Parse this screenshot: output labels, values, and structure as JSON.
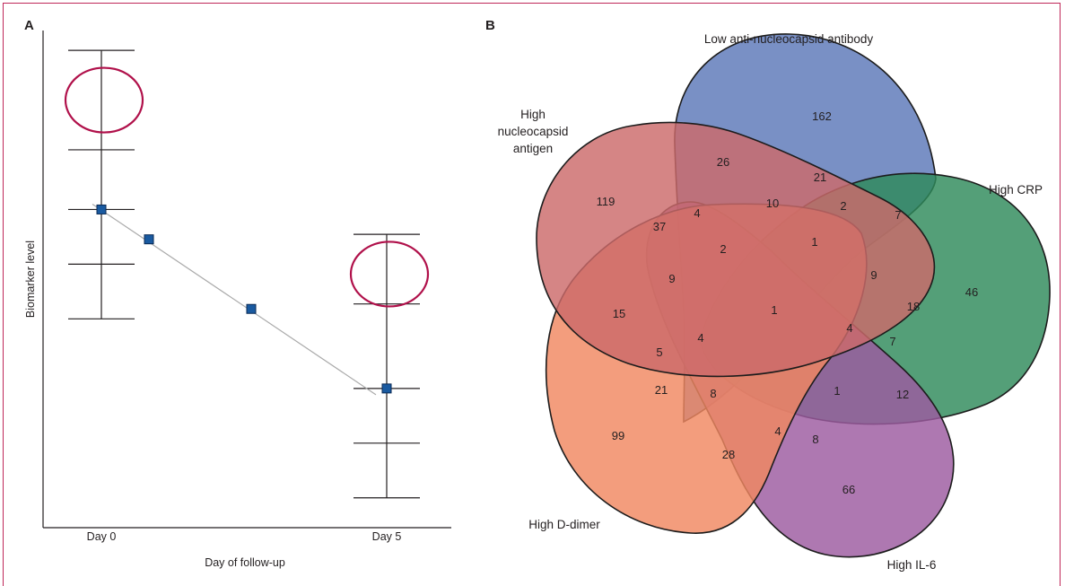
{
  "panels": {
    "a_letter": "A",
    "b_letter": "B"
  },
  "chart_data": [
    {
      "panel": "A",
      "type": "line",
      "xlabel": "Day of follow-up",
      "ylabel": "Biomarker level",
      "x_ticks": [
        "Day 0",
        "Day 5"
      ],
      "series": [
        {
          "values": [
            0.64,
            0.58,
            0.44,
            0.28
          ]
        }
      ],
      "error_bars": [
        {
          "x": "Day 0",
          "levels": [
            0.96,
            0.76,
            0.64,
            0.53,
            0.42
          ],
          "circled_level": 0.86
        },
        {
          "x": "Day 5",
          "levels": [
            0.59,
            0.45,
            0.28,
            0.17,
            0.06
          ],
          "circled_level": 0.51
        }
      ],
      "colors": {
        "marker": "#1a5aa0",
        "marker_edge": "#0a2a55",
        "line": "#aaaaaa",
        "circle": "#b0104a"
      }
    },
    {
      "panel": "B",
      "type": "venn",
      "sets": [
        {
          "label": "Low anti-nucleocapsid antibody",
          "color": "#5b78b8"
        },
        {
          "label": "High CRP",
          "color": "#2e8a5a"
        },
        {
          "label": "High IL-6",
          "color": "#9c5aa0"
        },
        {
          "label": "High D-dimer",
          "color": "#f08860"
        },
        {
          "label": "High nucleocapsid antigen",
          "label_lines": [
            "High",
            "nucleocapsid",
            "antigen"
          ],
          "color": "#cc6a6a"
        }
      ],
      "region_counts": [
        "162",
        "26",
        "21",
        "2",
        "7",
        "119",
        "4",
        "10",
        "37",
        "2",
        "1",
        "9",
        "46",
        "9",
        "18",
        "15",
        "1",
        "4",
        "7",
        "5",
        "4",
        "21",
        "8",
        "1",
        "12",
        "99",
        "4",
        "8",
        "28",
        "66"
      ]
    }
  ]
}
